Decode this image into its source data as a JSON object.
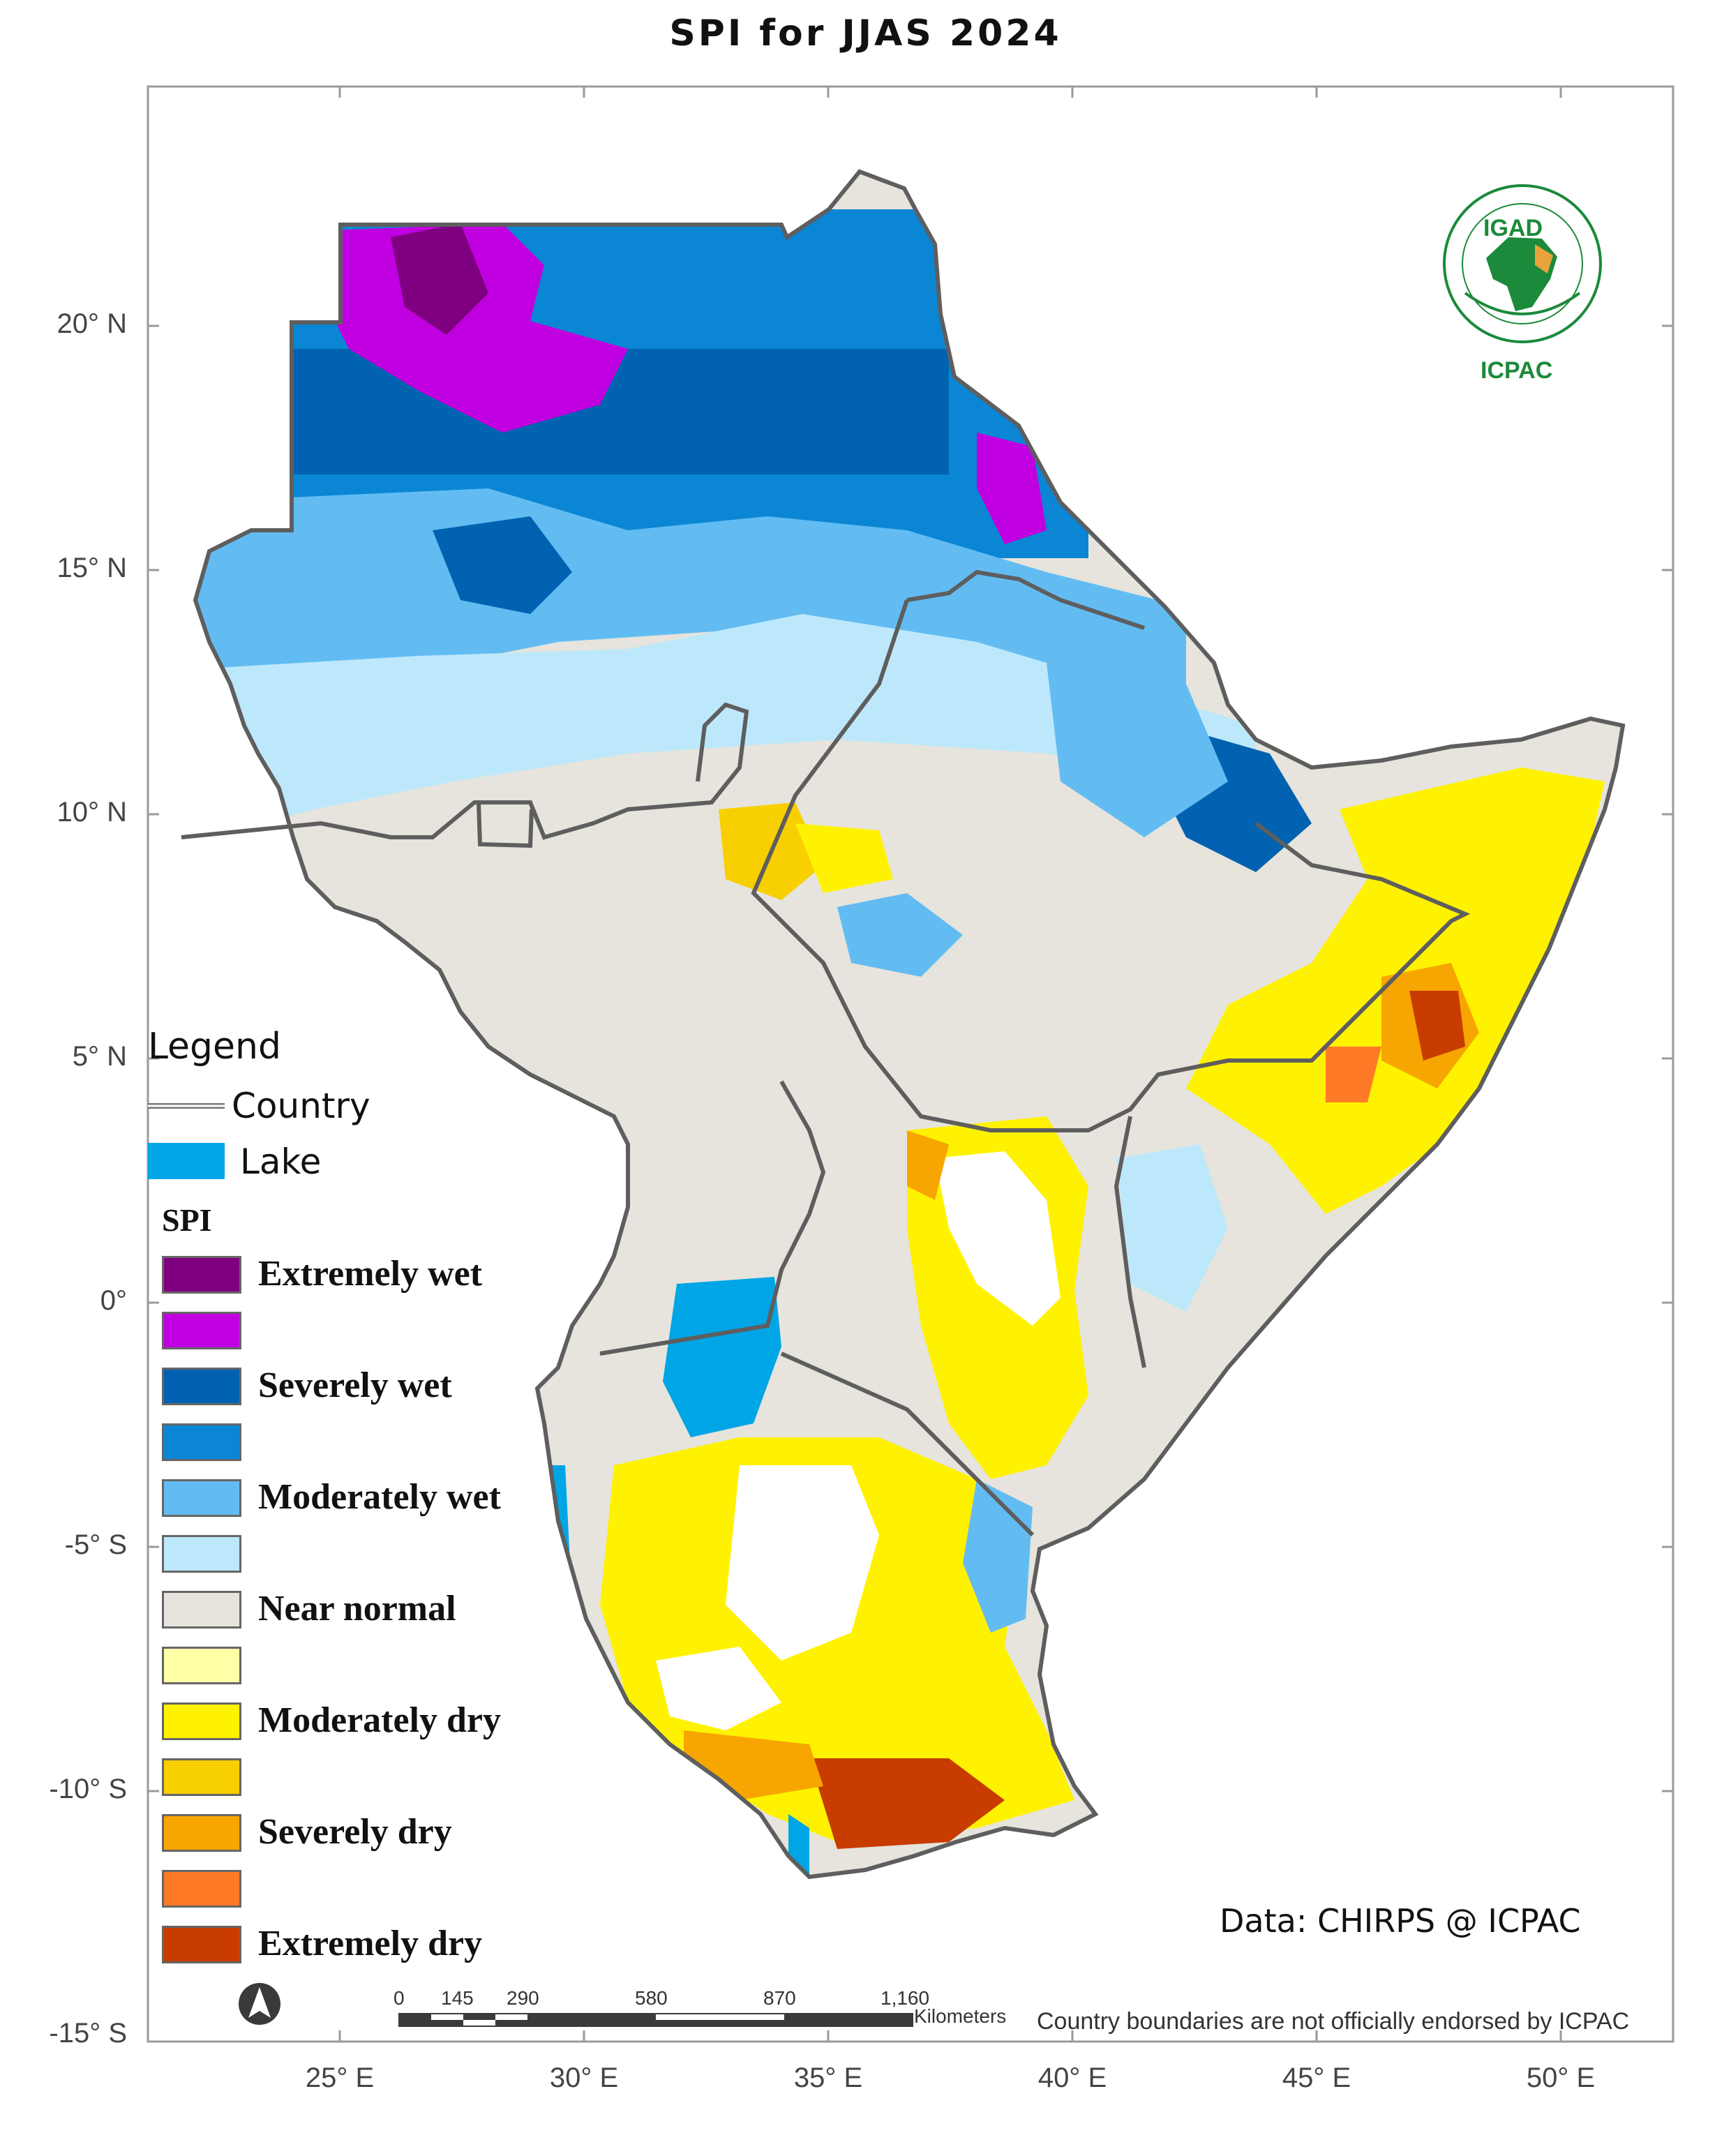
{
  "title": "SPI  for  JJAS  2024",
  "axes": {
    "lat_ticks": [
      "20° N",
      "15° N",
      "10° N",
      "5° N",
      "0°",
      "-5° S",
      "-10° S",
      "-15° S"
    ],
    "lon_ticks": [
      "25° E",
      "30° E",
      "35° E",
      "40° E",
      "45° E",
      "50° E"
    ]
  },
  "legend": {
    "title": "Legend",
    "country_label": "Country",
    "lake_label": "Lake",
    "lake_color": "#00a5e6",
    "spi_title": "SPI",
    "classes": [
      {
        "label": "Extremely wet",
        "color": "#7e0080"
      },
      {
        "label": "",
        "color": "#c000e0"
      },
      {
        "label": "Severely wet",
        "color": "#0062b0"
      },
      {
        "label": "",
        "color": "#0a86d4"
      },
      {
        "label": "Moderately wet",
        "color": "#62bcf2"
      },
      {
        "label": "",
        "color": "#bde8fb"
      },
      {
        "label": "Near normal",
        "color": "#e6e4dc"
      },
      {
        "label": "",
        "color": "#ffffa8"
      },
      {
        "label": "Moderately dry",
        "color": "#fff200"
      },
      {
        "label": "",
        "color": "#f8cf00"
      },
      {
        "label": "Severely dry",
        "color": "#f7a500"
      },
      {
        "label": "",
        "color": "#ff7a26"
      },
      {
        "label": "Extremely dry",
        "color": "#c83c00"
      }
    ]
  },
  "credit": "Data: CHIRPS @ ICPAC",
  "disclaimer": "Country boundaries are not officially endorsed by ICPAC",
  "scale_bar": {
    "labels": [
      "0",
      "145",
      "290",
      "580",
      "870",
      "1,160"
    ],
    "unit": "Kilometers"
  },
  "logo": {
    "top_text": "IGAD",
    "bottom_text": "ICPAC",
    "color": "#1b8a3a"
  },
  "icons": {
    "north_arrow": "north-arrow-icon",
    "logo": "igad-icpac-logo-icon"
  }
}
